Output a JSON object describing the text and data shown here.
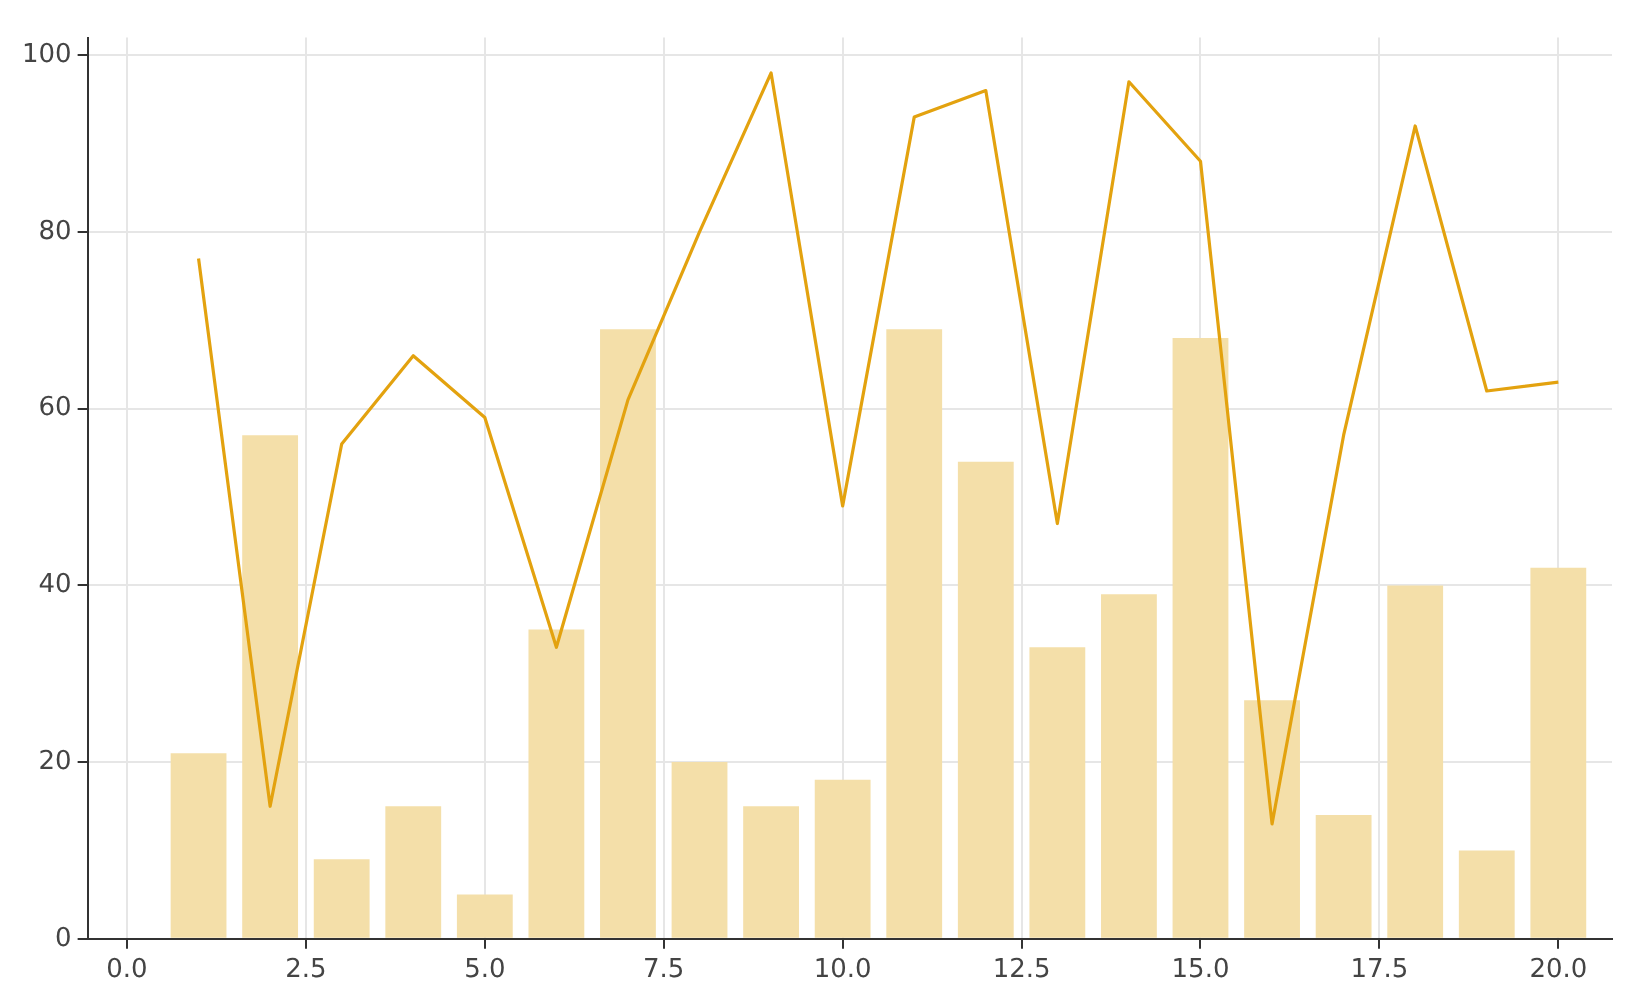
{
  "chart_data": {
    "type": "bar",
    "x": [
      1,
      2,
      3,
      4,
      5,
      6,
      7,
      8,
      9,
      10,
      11,
      12,
      13,
      14,
      15,
      16,
      17,
      18,
      19,
      20
    ],
    "series": [
      {
        "color": "#f4dfa9",
        "values": [
          21,
          57,
          9,
          15,
          5,
          35,
          69,
          20,
          15,
          18,
          69,
          54,
          33,
          39,
          68,
          27,
          14,
          40,
          10,
          42
        ]
      },
      {
        "type": "line",
        "color": "#e3a20f",
        "values": [
          77,
          15,
          56,
          66,
          59,
          33,
          61,
          80,
          98,
          49,
          93,
          96,
          47,
          97,
          88,
          13,
          57,
          92,
          62,
          63
        ]
      }
    ],
    "xlim": [
      -0.55,
      20.75
    ],
    "xticks": [
      {
        "value": 0,
        "label": "0.0"
      },
      {
        "value": 2.5,
        "label": "2.5"
      },
      {
        "value": 5,
        "label": "5.0"
      },
      {
        "value": 7.5,
        "label": "7.5"
      },
      {
        "value": 10,
        "label": "10.0"
      },
      {
        "value": 12.5,
        "label": "12.5"
      },
      {
        "value": 15,
        "label": "15.0"
      },
      {
        "value": 17.5,
        "label": "17.5"
      },
      {
        "value": 20,
        "label": "20.0"
      }
    ],
    "ylim": [
      0,
      102
    ],
    "yticks": [
      0,
      20,
      40,
      60,
      80,
      100
    ],
    "grid": true,
    "legend": false,
    "marker": "none",
    "line_style": "solid"
  }
}
